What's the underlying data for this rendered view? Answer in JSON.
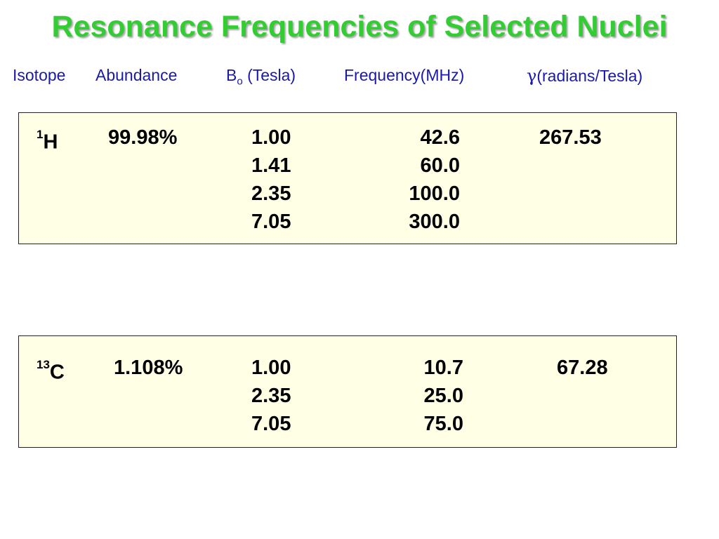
{
  "title": "Resonance Frequencies of Selected Nuclei",
  "headers": {
    "isotope": "Isotope",
    "abundance": "Abundance",
    "bo_main": "B",
    "bo_sub": "o",
    "bo_unit": "(Tesla)",
    "frequency": "Frequency(MHz)",
    "gamma_symbol": "γ",
    "gamma_unit": "(radians/Tesla)"
  },
  "rows": [
    {
      "mass": "1",
      "element": "H",
      "abundance": "99.98%",
      "b0": [
        "1.00",
        "1.41",
        "2.35",
        "7.05"
      ],
      "frequency": [
        "42.6",
        "60.0",
        "100.0",
        "300.0"
      ],
      "gamma": "267.53"
    },
    {
      "mass": "13",
      "element": "C",
      "abundance": "1.108%",
      "b0": [
        "1.00",
        "2.35",
        "7.05"
      ],
      "frequency": [
        "10.7",
        "25.0",
        "75.0"
      ],
      "gamma": "67.28"
    }
  ]
}
